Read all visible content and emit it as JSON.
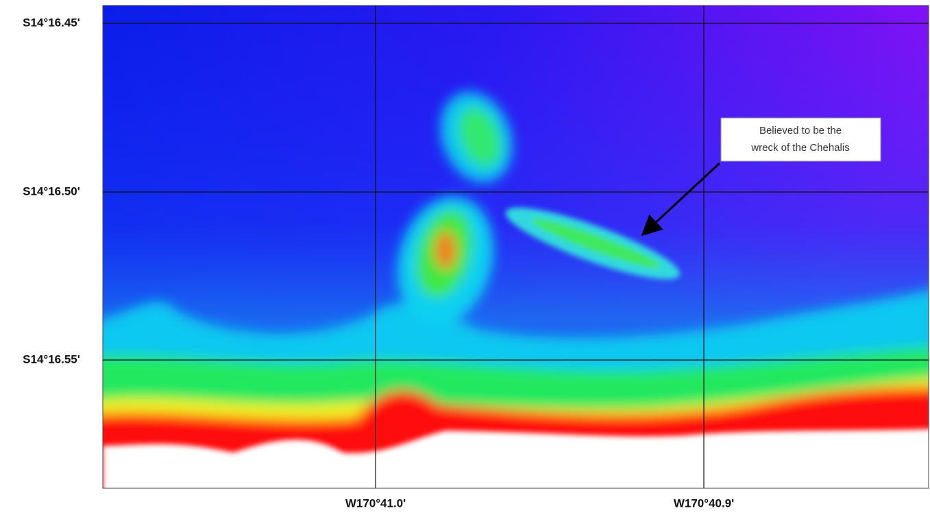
{
  "map": {
    "lat_labels": [
      "S14°16.45'",
      "S14°16.50'",
      "S14°16.55'"
    ],
    "lon_labels": [
      "W170°41.0'",
      "W170°40.9'"
    ],
    "annotation": {
      "lines": [
        "Believed to be the",
        "wreck of the Chehalis"
      ]
    }
  }
}
